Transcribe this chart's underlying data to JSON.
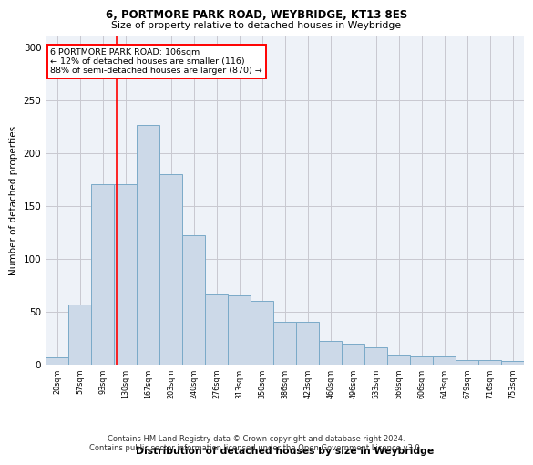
{
  "title1": "6, PORTMORE PARK ROAD, WEYBRIDGE, KT13 8ES",
  "title2": "Size of property relative to detached houses in Weybridge",
  "xlabel": "Distribution of detached houses by size in Weybridge",
  "ylabel": "Number of detached properties",
  "categories": [
    "20sqm",
    "57sqm",
    "93sqm",
    "130sqm",
    "167sqm",
    "203sqm",
    "240sqm",
    "276sqm",
    "313sqm",
    "350sqm",
    "386sqm",
    "423sqm",
    "460sqm",
    "496sqm",
    "533sqm",
    "569sqm",
    "606sqm",
    "643sqm",
    "679sqm",
    "716sqm",
    "753sqm"
  ],
  "values": [
    7,
    57,
    170,
    170,
    226,
    180,
    122,
    66,
    65,
    60,
    40,
    40,
    22,
    20,
    16,
    9,
    8,
    8,
    4,
    4,
    3
  ],
  "bar_color": "#ccd9e8",
  "bar_edge_color": "#7aaac8",
  "bar_linewidth": 0.7,
  "grid_color": "#c8c8d0",
  "background_color": "#eef2f8",
  "vline_color": "red",
  "annotation_text": "6 PORTMORE PARK ROAD: 106sqm\n← 12% of detached houses are smaller (116)\n88% of semi-detached houses are larger (870) →",
  "annotation_box_color": "#ffffff",
  "annotation_box_edge": "red",
  "footer1": "Contains HM Land Registry data © Crown copyright and database right 2024.",
  "footer2": "Contains public sector information licensed under the Open Government Licence v3.0.",
  "ylim": [
    0,
    310
  ],
  "yticks": [
    0,
    50,
    100,
    150,
    200,
    250,
    300
  ]
}
